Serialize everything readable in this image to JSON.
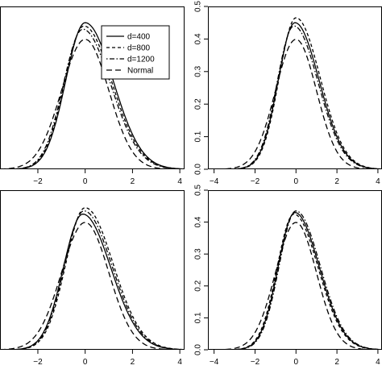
{
  "chart_data": [
    {
      "type": "line",
      "panel": "top-left",
      "xlim": [
        -3.6,
        4.2
      ],
      "ylim": [
        0,
        0.5
      ],
      "x_ticks": [
        -2,
        0,
        2,
        4
      ],
      "y_ticks": [],
      "grid": false,
      "legend": {
        "placement": "top-right",
        "entries": [
          {
            "label": "d=400",
            "dash": "solid"
          },
          {
            "label": "d=800",
            "dash": "dashed-short"
          },
          {
            "label": "d=1200",
            "dash": "dot-dash"
          },
          {
            "label": "Normal",
            "dash": "dashed-long"
          }
        ]
      },
      "series": [
        {
          "style": "solid",
          "mode": 0.0,
          "peak": 0.45
        },
        {
          "style": "dashed-short",
          "mode": -0.05,
          "peak": 0.44
        },
        {
          "style": "dot-dash",
          "mode": -0.1,
          "peak": 0.43
        },
        {
          "style": "dashed-long",
          "normal": true,
          "peak": 0.399
        }
      ]
    },
    {
      "type": "line",
      "panel": "top-right",
      "xlim": [
        -4.3,
        4.2
      ],
      "ylim": [
        0,
        0.5
      ],
      "x_ticks": [
        -4,
        -2,
        0,
        2,
        4
      ],
      "y_ticks": [
        0.0,
        0.1,
        0.2,
        0.3,
        0.4,
        0.5
      ],
      "grid": false,
      "series": [
        {
          "style": "solid",
          "mode": -0.05,
          "peak": 0.45
        },
        {
          "style": "dashed-short",
          "mode": 0.0,
          "peak": 0.465
        },
        {
          "style": "dot-dash",
          "mode": -0.1,
          "peak": 0.44
        },
        {
          "style": "dashed-long",
          "normal": true,
          "peak": 0.399
        }
      ]
    },
    {
      "type": "line",
      "panel": "bottom-left",
      "xlim": [
        -3.6,
        4.2
      ],
      "ylim": [
        0,
        0.5
      ],
      "x_ticks": [
        -2,
        0,
        2,
        4
      ],
      "y_ticks": [],
      "grid": false,
      "series": [
        {
          "style": "solid",
          "mode": -0.1,
          "peak": 0.425
        },
        {
          "style": "dashed-short",
          "mode": 0.0,
          "peak": 0.445
        },
        {
          "style": "dot-dash",
          "mode": -0.05,
          "peak": 0.435
        },
        {
          "style": "dashed-long",
          "normal": true,
          "peak": 0.399
        }
      ]
    },
    {
      "type": "line",
      "panel": "bottom-right",
      "xlim": [
        -4.3,
        4.2
      ],
      "ylim": [
        0,
        0.5
      ],
      "x_ticks": [
        -4,
        -2,
        0,
        2,
        4
      ],
      "y_ticks": [
        0.0,
        0.1,
        0.2,
        0.3,
        0.4,
        0.5
      ],
      "grid": false,
      "series": [
        {
          "style": "solid",
          "mode": -0.05,
          "peak": 0.43
        },
        {
          "style": "dashed-short",
          "mode": -0.1,
          "peak": 0.425
        },
        {
          "style": "dot-dash",
          "mode": 0.0,
          "peak": 0.435
        },
        {
          "style": "dashed-long",
          "normal": true,
          "peak": 0.399
        }
      ]
    }
  ]
}
